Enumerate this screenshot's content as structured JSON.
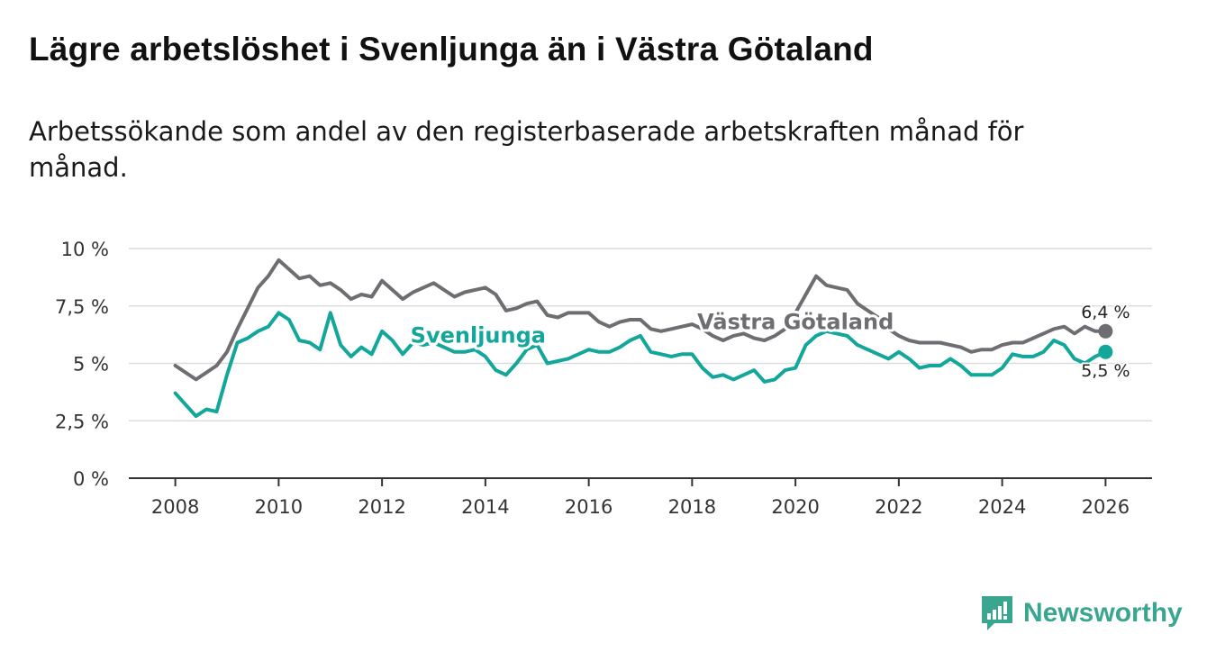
{
  "title": "Lägre arbetslöshet i Svenljunga än i Västra Götaland",
  "subtitle": "Arbetssökande som andel av den registerbaserade arbetskraften månad för månad.",
  "brand": {
    "name": "Newsworthy",
    "icon": "newsworthy-logo-icon",
    "color": "#3aa68f"
  },
  "chart_data": {
    "type": "line",
    "title": "Lägre arbetslöshet i Svenljunga än i Västra Götaland",
    "xlabel": "",
    "ylabel": "",
    "xlim": [
      2007.1,
      2026.9
    ],
    "ylim": [
      0,
      10
    ],
    "grid": true,
    "y_ticks": [
      {
        "value": 0,
        "label": "0 %"
      },
      {
        "value": 2.5,
        "label": "2,5 %"
      },
      {
        "value": 5,
        "label": "5 %"
      },
      {
        "value": 7.5,
        "label": "7,5 %"
      },
      {
        "value": 10,
        "label": "10 %"
      }
    ],
    "x_ticks": [
      {
        "value": 2008,
        "label": "2008"
      },
      {
        "value": 2010,
        "label": "2010"
      },
      {
        "value": 2012,
        "label": "2012"
      },
      {
        "value": 2014,
        "label": "2014"
      },
      {
        "value": 2016,
        "label": "2016"
      },
      {
        "value": 2018,
        "label": "2018"
      },
      {
        "value": 2020,
        "label": "2020"
      },
      {
        "value": 2022,
        "label": "2022"
      },
      {
        "value": 2024,
        "label": "2024"
      },
      {
        "value": 2026,
        "label": "2026"
      }
    ],
    "series": [
      {
        "name": "Västra Götaland",
        "color": "#6e6e72",
        "label_at": [
          2018.1,
          6.5
        ],
        "end_label": "6,4 %",
        "end_value": 6.4,
        "x": [
          2008.0,
          2008.2,
          2008.4,
          2008.6,
          2008.8,
          2009.0,
          2009.2,
          2009.4,
          2009.6,
          2009.8,
          2010.0,
          2010.2,
          2010.4,
          2010.6,
          2010.8,
          2011.0,
          2011.2,
          2011.4,
          2011.6,
          2011.8,
          2012.0,
          2012.2,
          2012.4,
          2012.6,
          2012.8,
          2013.0,
          2013.2,
          2013.4,
          2013.6,
          2013.8,
          2014.0,
          2014.2,
          2014.4,
          2014.6,
          2014.8,
          2015.0,
          2015.2,
          2015.4,
          2015.6,
          2015.8,
          2016.0,
          2016.2,
          2016.4,
          2016.6,
          2016.8,
          2017.0,
          2017.2,
          2017.4,
          2017.6,
          2017.8,
          2018.0,
          2018.2,
          2018.4,
          2018.6,
          2018.8,
          2019.0,
          2019.2,
          2019.4,
          2019.6,
          2019.8,
          2020.0,
          2020.2,
          2020.4,
          2020.6,
          2020.8,
          2021.0,
          2021.2,
          2021.4,
          2021.6,
          2021.8,
          2022.0,
          2022.2,
          2022.4,
          2022.6,
          2022.8,
          2023.0,
          2023.2,
          2023.4,
          2023.6,
          2023.8,
          2024.0,
          2024.2,
          2024.4,
          2024.6,
          2024.8,
          2025.0,
          2025.2,
          2025.4,
          2025.6,
          2025.8,
          2026.0
        ],
        "values": [
          4.9,
          4.6,
          4.3,
          4.6,
          4.9,
          5.5,
          6.5,
          7.4,
          8.3,
          8.8,
          9.5,
          9.1,
          8.7,
          8.8,
          8.4,
          8.5,
          8.2,
          7.8,
          8.0,
          7.9,
          8.6,
          8.2,
          7.8,
          8.1,
          8.3,
          8.5,
          8.2,
          7.9,
          8.1,
          8.2,
          8.3,
          8.0,
          7.3,
          7.4,
          7.6,
          7.7,
          7.1,
          7.0,
          7.2,
          7.2,
          7.2,
          6.8,
          6.6,
          6.8,
          6.9,
          6.9,
          6.5,
          6.4,
          6.5,
          6.6,
          6.7,
          6.5,
          6.2,
          6.0,
          6.2,
          6.3,
          6.1,
          6.0,
          6.2,
          6.5,
          7.2,
          8.0,
          8.8,
          8.4,
          8.3,
          8.2,
          7.6,
          7.3,
          7.0,
          6.5,
          6.2,
          6.0,
          5.9,
          5.9,
          5.9,
          5.8,
          5.7,
          5.5,
          5.6,
          5.6,
          5.8,
          5.9,
          5.9,
          6.1,
          6.3,
          6.5,
          6.6,
          6.3,
          6.6,
          6.4,
          6.4
        ]
      },
      {
        "name": "Svenljunga",
        "color": "#13a69a",
        "label_at": [
          2012.55,
          5.9
        ],
        "end_label": "5,5 %",
        "end_value": 5.5,
        "x": [
          2008.0,
          2008.2,
          2008.4,
          2008.6,
          2008.8,
          2009.0,
          2009.2,
          2009.4,
          2009.6,
          2009.8,
          2010.0,
          2010.2,
          2010.4,
          2010.6,
          2010.8,
          2011.0,
          2011.2,
          2011.4,
          2011.6,
          2011.8,
          2012.0,
          2012.2,
          2012.4,
          2012.6,
          2012.8,
          2013.0,
          2013.2,
          2013.4,
          2013.6,
          2013.8,
          2014.0,
          2014.2,
          2014.4,
          2014.6,
          2014.8,
          2015.0,
          2015.2,
          2015.4,
          2015.6,
          2015.8,
          2016.0,
          2016.2,
          2016.4,
          2016.6,
          2016.8,
          2017.0,
          2017.2,
          2017.4,
          2017.6,
          2017.8,
          2018.0,
          2018.2,
          2018.4,
          2018.6,
          2018.8,
          2019.0,
          2019.2,
          2019.4,
          2019.6,
          2019.8,
          2020.0,
          2020.2,
          2020.4,
          2020.6,
          2020.8,
          2021.0,
          2021.2,
          2021.4,
          2021.6,
          2021.8,
          2022.0,
          2022.2,
          2022.4,
          2022.6,
          2022.8,
          2023.0,
          2023.2,
          2023.4,
          2023.6,
          2023.8,
          2024.0,
          2024.2,
          2024.4,
          2024.6,
          2024.8,
          2025.0,
          2025.2,
          2025.4,
          2025.6,
          2025.8,
          2026.0
        ],
        "values": [
          3.7,
          3.2,
          2.7,
          3.0,
          2.9,
          4.5,
          5.9,
          6.1,
          6.4,
          6.6,
          7.2,
          6.9,
          6.0,
          5.9,
          5.6,
          7.2,
          5.8,
          5.3,
          5.7,
          5.4,
          6.4,
          6.0,
          5.4,
          5.9,
          5.8,
          5.9,
          5.7,
          5.5,
          5.5,
          5.6,
          5.3,
          4.7,
          4.5,
          5.0,
          5.6,
          5.8,
          5.0,
          5.1,
          5.2,
          5.4,
          5.6,
          5.5,
          5.5,
          5.7,
          6.0,
          6.2,
          5.5,
          5.4,
          5.3,
          5.4,
          5.4,
          4.8,
          4.4,
          4.5,
          4.3,
          4.5,
          4.7,
          4.2,
          4.3,
          4.7,
          4.8,
          5.8,
          6.2,
          6.4,
          6.3,
          6.2,
          5.8,
          5.6,
          5.4,
          5.2,
          5.5,
          5.2,
          4.8,
          4.9,
          4.9,
          5.2,
          4.9,
          4.5,
          4.5,
          4.5,
          4.8,
          5.4,
          5.3,
          5.3,
          5.5,
          6.0,
          5.8,
          5.2,
          5.0,
          5.3,
          5.5
        ]
      }
    ]
  }
}
